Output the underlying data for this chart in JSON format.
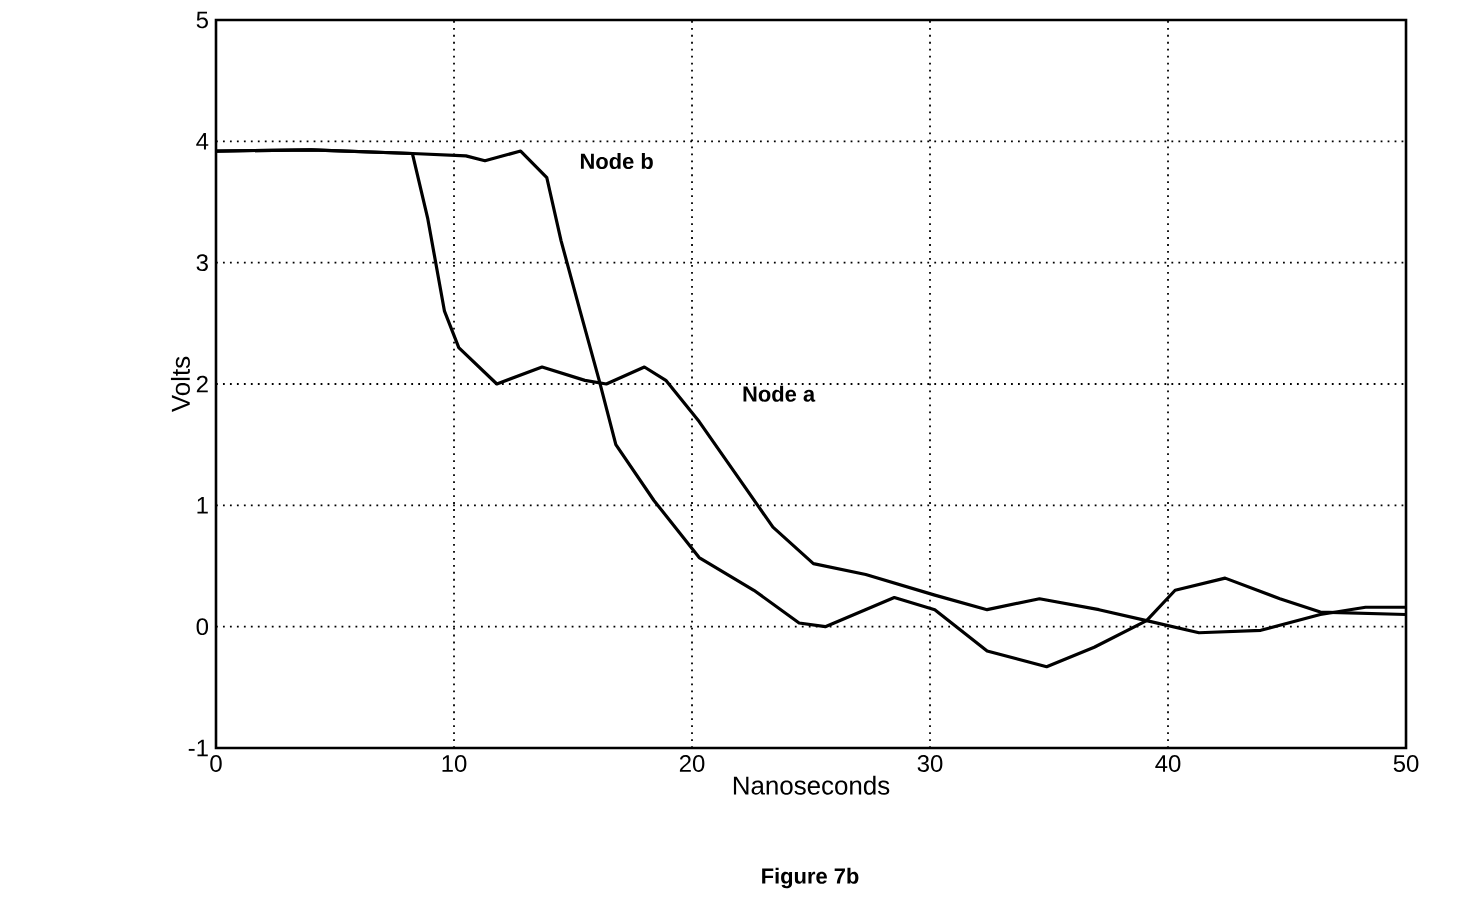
{
  "chart_data": {
    "type": "line",
    "xlabel": "Nanoseconds",
    "ylabel": "Volts",
    "annotations": [
      "Figure 7b"
    ],
    "xlim": [
      0,
      50
    ],
    "ylim": [
      -1,
      5
    ],
    "xticks": [
      0,
      10,
      20,
      30,
      40,
      50
    ],
    "yticks": [
      -1,
      0,
      1,
      2,
      3,
      4,
      5
    ],
    "grid": true,
    "marker": "none",
    "line_style": "solid",
    "series": [
      {
        "name": "Node a",
        "color": "#000000",
        "x": [
          0,
          4,
          8.25,
          8.9,
          9.6,
          10.2,
          11.8,
          13.7,
          15.5,
          16.4,
          18,
          18.9,
          20.3,
          21.8,
          23.4,
          25.1,
          27.3,
          30.2,
          32.4,
          34.6,
          37.1,
          39.1,
          41.3,
          43.9,
          46.4,
          48.3,
          50
        ],
        "values": [
          3.92,
          3.93,
          3.9,
          3.36,
          2.6,
          2.3,
          2.0,
          2.14,
          2.03,
          2.0,
          2.14,
          2.03,
          1.69,
          1.27,
          0.82,
          0.52,
          0.43,
          0.26,
          0.14,
          0.23,
          0.14,
          0.05,
          -0.05,
          -0.03,
          0.1,
          0.16,
          0.16
        ]
      },
      {
        "name": "Node b",
        "color": "#000000",
        "x": [
          0,
          4,
          8.25,
          10.5,
          11.3,
          12.8,
          13.9,
          14.5,
          15.3,
          16.1,
          16.8,
          18.4,
          20.3,
          22.6,
          24.5,
          25.6,
          28.5,
          30.2,
          32.4,
          34.9,
          36.9,
          39.1,
          40.3,
          42.4,
          44.7,
          46.4,
          50
        ],
        "values": [
          3.92,
          3.93,
          3.9,
          3.88,
          3.84,
          3.92,
          3.7,
          3.18,
          2.6,
          2.03,
          1.5,
          1.04,
          0.57,
          0.3,
          0.03,
          0.0,
          0.24,
          0.14,
          -0.2,
          -0.33,
          -0.17,
          0.05,
          0.3,
          0.4,
          0.23,
          0.12,
          0.1
        ]
      }
    ]
  }
}
